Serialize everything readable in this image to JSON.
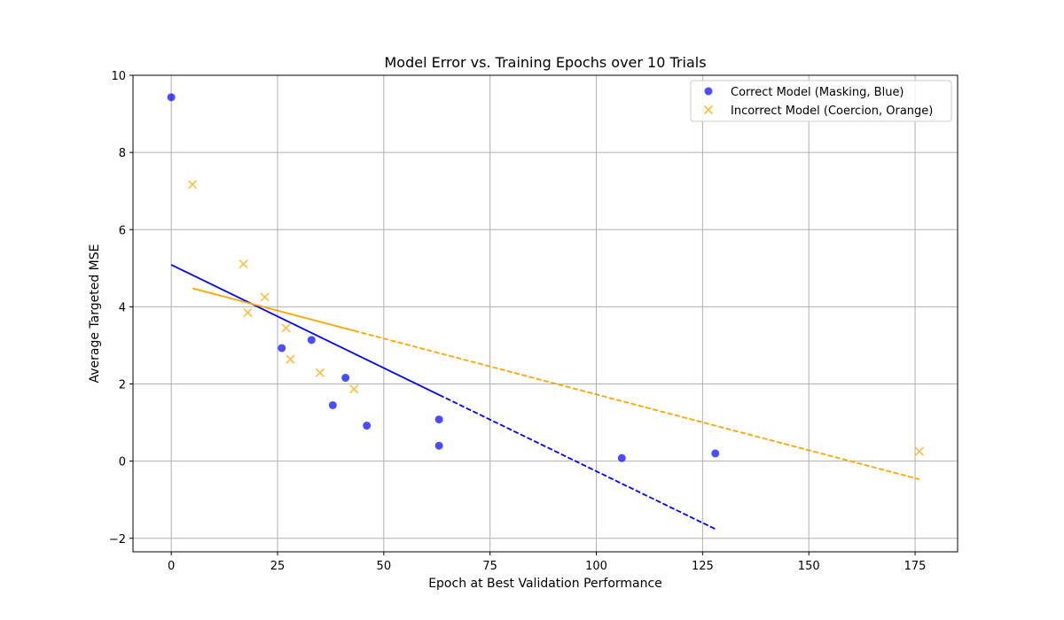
{
  "chart_data": {
    "type": "scatter",
    "title": "Model Error vs. Training Epochs over 10 Trials",
    "xlabel": "Epoch at Best Validation Performance",
    "ylabel": "Average Targeted MSE",
    "xlim": [
      -9,
      185
    ],
    "ylim": [
      -2.35,
      10
    ],
    "xticks": [
      0,
      25,
      50,
      75,
      100,
      125,
      150,
      175
    ],
    "yticks": [
      -2,
      0,
      2,
      4,
      6,
      8,
      10
    ],
    "ytick_labels": [
      "−2",
      "0",
      "2",
      "4",
      "6",
      "8",
      "10"
    ],
    "grid": true,
    "legend_position": "top-right",
    "series": [
      {
        "name": "Correct Model (Masking, Blue)",
        "marker": "circle",
        "color": "#0000ff",
        "points": [
          [
            0,
            9.43
          ],
          [
            26,
            2.93
          ],
          [
            33,
            3.14
          ],
          [
            38,
            1.45
          ],
          [
            41,
            2.16
          ],
          [
            46,
            0.92
          ],
          [
            63,
            1.08
          ],
          [
            63,
            0.4
          ],
          [
            106,
            0.08
          ],
          [
            128,
            0.2
          ]
        ],
        "trendline": {
          "x0": 0,
          "y0": 5.09,
          "x1": 128,
          "y1": -1.76,
          "solid_until": 63
        }
      },
      {
        "name": "Incorrect Model (Coercion, Orange)",
        "marker": "x",
        "color": "#ffa500",
        "points": [
          [
            5,
            7.17
          ],
          [
            17,
            5.11
          ],
          [
            18,
            3.85
          ],
          [
            22,
            4.25
          ],
          [
            27,
            3.45
          ],
          [
            28,
            2.64
          ],
          [
            35,
            2.29
          ],
          [
            43,
            1.87
          ],
          [
            176,
            0.25
          ]
        ],
        "trendline": {
          "x0": 5,
          "y0": 4.48,
          "x1": 176,
          "y1": -0.47,
          "solid_until": 43
        }
      }
    ]
  }
}
